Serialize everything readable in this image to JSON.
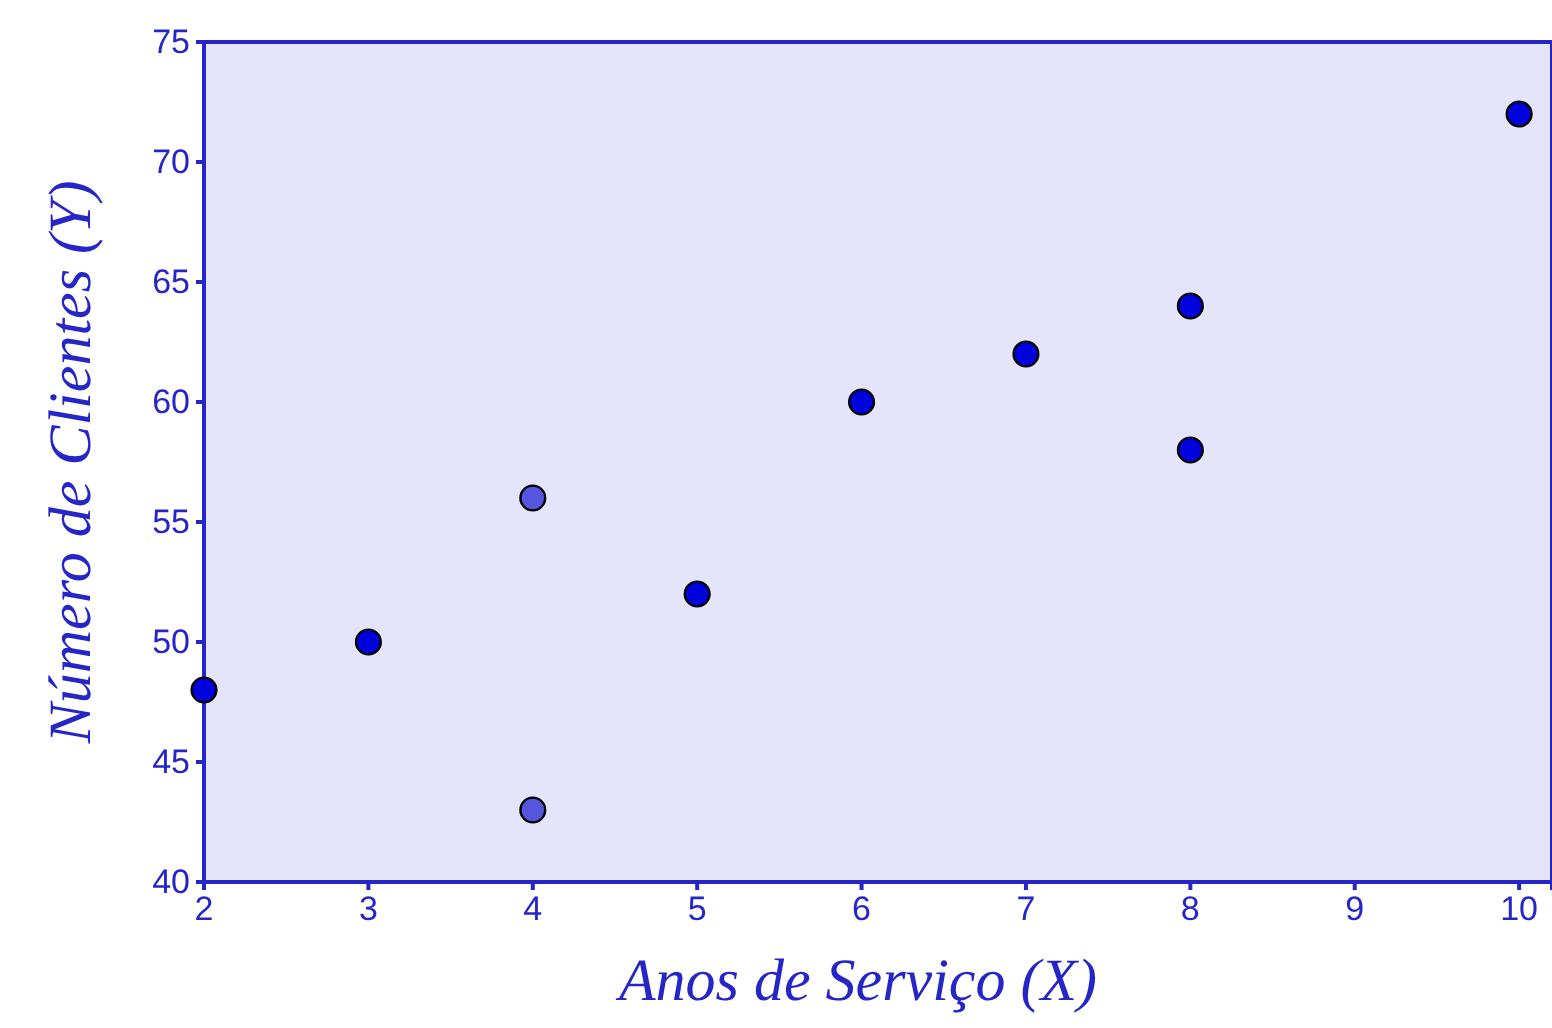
{
  "chart_data": {
    "type": "scatter",
    "xlabel": "Anos de Serviço (X)",
    "ylabel": "Número de Clientes (Y)",
    "x": [
      2,
      3,
      4,
      4,
      5,
      6,
      7,
      8,
      8,
      10
    ],
    "values": [
      48,
      50,
      56,
      43,
      52,
      60,
      62,
      64,
      58,
      72
    ],
    "colors": [
      "#0000dd",
      "#0000dd",
      "#5555dd",
      "#5555dd",
      "#0000dd",
      "#0000dd",
      "#0000dd",
      "#0000dd",
      "#0000dd",
      "#0000dd"
    ],
    "xlim": [
      2,
      10.2
    ],
    "xticks": [
      2,
      3,
      4,
      5,
      6,
      7,
      8,
      9,
      10
    ],
    "ylim": [
      40,
      75
    ],
    "yticks": [
      40,
      45,
      50,
      55,
      60,
      65,
      70,
      75
    ],
    "grid": false,
    "marker": "circle"
  }
}
